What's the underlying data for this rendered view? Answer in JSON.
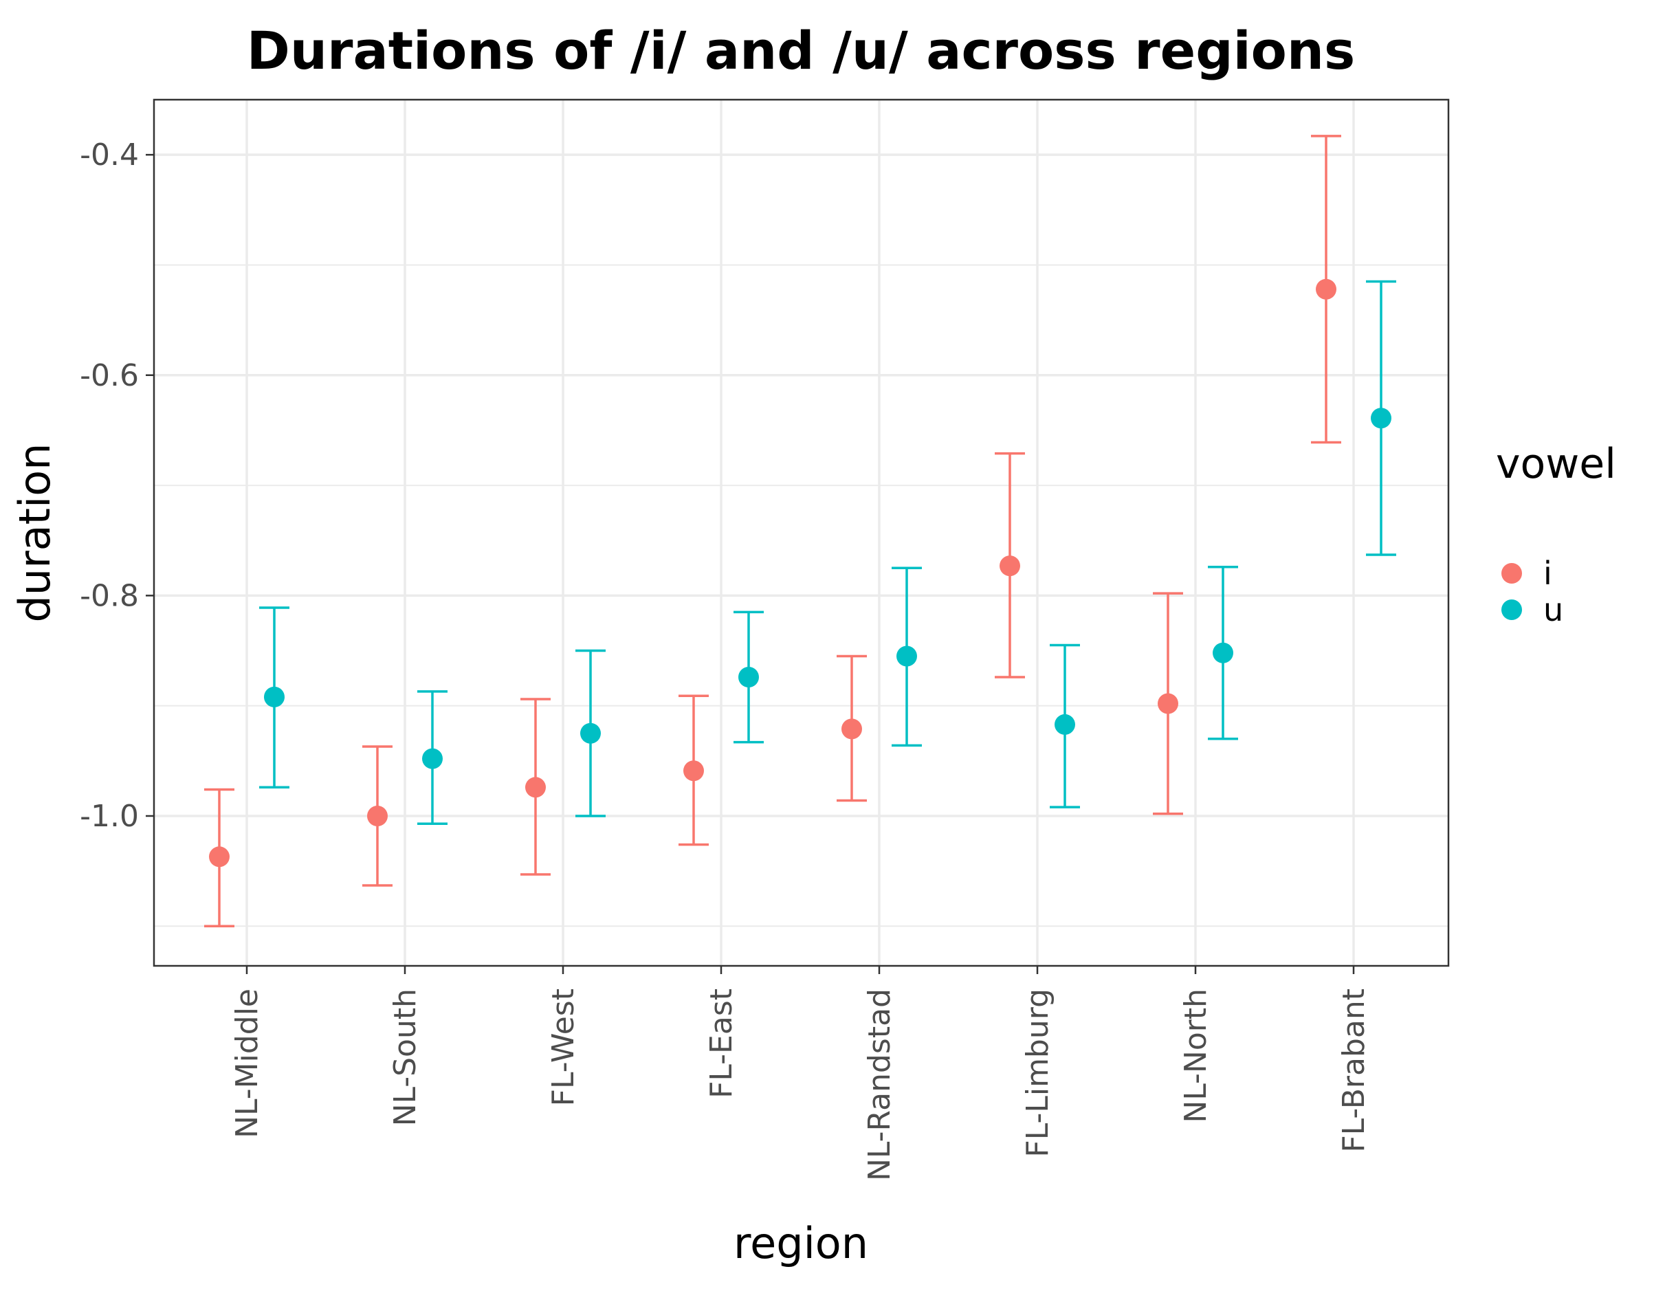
{
  "chart_data": {
    "type": "scatter",
    "title": "Durations of /i/ and /u/ across regions",
    "xlabel": "region",
    "ylabel": "duration",
    "categories": [
      "NL-Middle",
      "NL-South",
      "FL-West",
      "FL-East",
      "NL-Randstad",
      "FL-Limburg",
      "NL-North",
      "FL-Brabant"
    ],
    "ylim": [
      -1.136,
      -0.35
    ],
    "yticks": [
      -1.0,
      -0.8,
      -0.6,
      -0.4
    ],
    "ytick_labels": [
      "-1.0",
      "-0.8",
      "-0.6",
      "-0.4"
    ],
    "grid": true,
    "legend": {
      "title": "vowel",
      "position": "right"
    },
    "series": [
      {
        "name": "i",
        "color": "#F8766D",
        "values": [
          -1.037,
          -1.0,
          -0.974,
          -0.959,
          -0.921,
          -0.773,
          -0.898,
          -0.522
        ],
        "lower": [
          -1.1,
          -1.063,
          -1.053,
          -1.026,
          -0.986,
          -0.874,
          -0.998,
          -0.661
        ],
        "upper": [
          -0.976,
          -0.937,
          -0.894,
          -0.891,
          -0.855,
          -0.671,
          -0.798,
          -0.383
        ]
      },
      {
        "name": "u",
        "color": "#00BFC4",
        "values": [
          -0.892,
          -0.948,
          -0.925,
          -0.874,
          -0.855,
          -0.917,
          -0.852,
          -0.639
        ],
        "lower": [
          -0.974,
          -1.007,
          -1.0,
          -0.933,
          -0.936,
          -0.992,
          -0.93,
          -0.763
        ],
        "upper": [
          -0.811,
          -0.887,
          -0.85,
          -0.815,
          -0.775,
          -0.845,
          -0.774,
          -0.515
        ]
      }
    ]
  }
}
